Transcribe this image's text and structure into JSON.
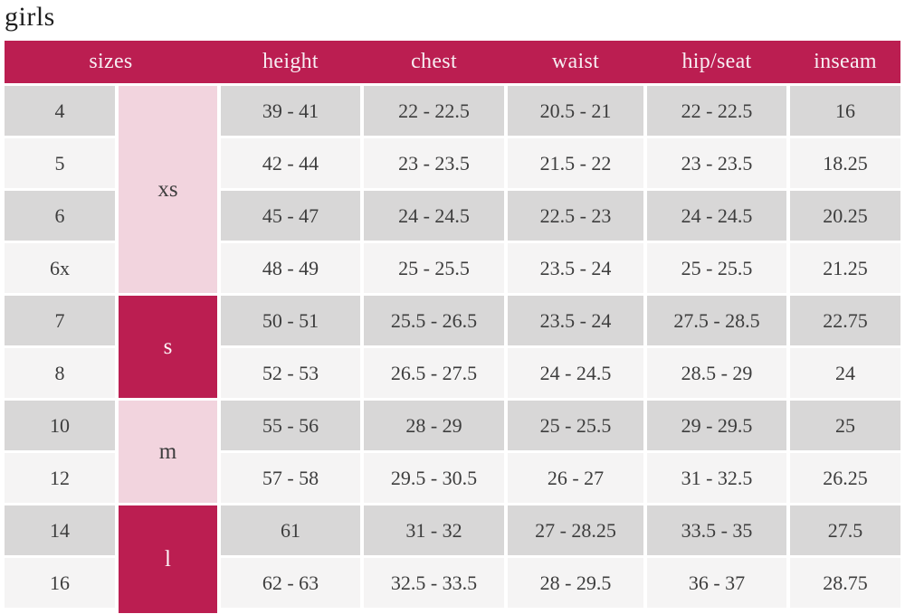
{
  "title": "girls",
  "colors": {
    "crimson": "#bb1e51",
    "light_pink": "#f2d4de",
    "gray_row": "#d8d7d7",
    "light_row": "#f5f4f4",
    "header_text": "#f7eef3",
    "body_text": "#3d3d3d"
  },
  "chart_data": {
    "type": "table",
    "title": "girls",
    "columns": [
      "sizes",
      "height",
      "chest",
      "waist",
      "hip/seat",
      "inseam"
    ],
    "size_groups": [
      {
        "label": "xs",
        "tone": "pink",
        "sizes": [
          "4",
          "5",
          "6",
          "6x"
        ],
        "row_span": 4
      },
      {
        "label": "s",
        "tone": "crimson",
        "sizes": [
          "7",
          "8"
        ],
        "row_span": 2
      },
      {
        "label": "m",
        "tone": "pink",
        "sizes": [
          "10",
          "12"
        ],
        "row_span": 2
      },
      {
        "label": "l",
        "tone": "crimson",
        "sizes": [
          "14",
          "16"
        ],
        "row_span": 2
      }
    ],
    "rows": [
      {
        "size": "4",
        "height": "39 - 41",
        "chest": "22 - 22.5",
        "waist": "20.5 - 21",
        "hip_seat": "22 - 22.5",
        "inseam": "16"
      },
      {
        "size": "5",
        "height": "42 - 44",
        "chest": "23 - 23.5",
        "waist": "21.5 - 22",
        "hip_seat": "23 - 23.5",
        "inseam": "18.25"
      },
      {
        "size": "6",
        "height": "45 - 47",
        "chest": "24 - 24.5",
        "waist": "22.5 - 23",
        "hip_seat": "24 - 24.5",
        "inseam": "20.25"
      },
      {
        "size": "6x",
        "height": "48 - 49",
        "chest": "25 - 25.5",
        "waist": "23.5 - 24",
        "hip_seat": "25 - 25.5",
        "inseam": "21.25"
      },
      {
        "size": "7",
        "height": "50 - 51",
        "chest": "25.5 - 26.5",
        "waist": "23.5 - 24",
        "hip_seat": "27.5 - 28.5",
        "inseam": "22.75"
      },
      {
        "size": "8",
        "height": "52 - 53",
        "chest": "26.5 - 27.5",
        "waist": "24 - 24.5",
        "hip_seat": "28.5 - 29",
        "inseam": "24"
      },
      {
        "size": "10",
        "height": "55 - 56",
        "chest": "28 - 29",
        "waist": "25 - 25.5",
        "hip_seat": "29 - 29.5",
        "inseam": "25"
      },
      {
        "size": "12",
        "height": "57 - 58",
        "chest": "29.5 - 30.5",
        "waist": "26 - 27",
        "hip_seat": "31 - 32.5",
        "inseam": "26.25"
      },
      {
        "size": "14",
        "height": "61",
        "chest": "31 - 32",
        "waist": "27 - 28.25",
        "hip_seat": "33.5 - 35",
        "inseam": "27.5"
      },
      {
        "size": "16",
        "height": "62 - 63",
        "chest": "32.5 - 33.5",
        "waist": "28 - 29.5",
        "hip_seat": "36 - 37",
        "inseam": "28.75"
      }
    ]
  }
}
